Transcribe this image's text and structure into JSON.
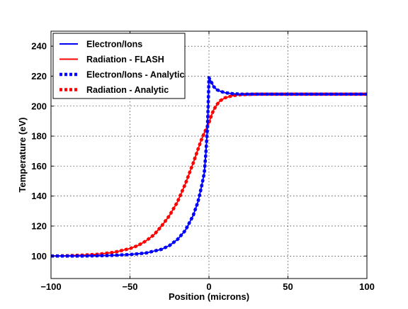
{
  "chart_data": {
    "type": "line",
    "title": "",
    "xlabel": "Position (microns)",
    "ylabel": "Temperature (eV)",
    "xlim": [
      -100,
      100
    ],
    "ylim": [
      85,
      250
    ],
    "xticks": [
      -100,
      -50,
      0,
      50,
      100
    ],
    "xtick_labels": [
      "−100",
      "−50",
      "0",
      "50",
      "100"
    ],
    "yticks": [
      100,
      120,
      140,
      160,
      180,
      200,
      220,
      240
    ],
    "ytick_labels": [
      "100",
      "120",
      "140",
      "160",
      "180",
      "200",
      "220",
      "240"
    ],
    "grid": true,
    "legend_position": "top-left",
    "series": [
      {
        "name": "Electron/Ions",
        "color": "#0000ff",
        "style": "solid",
        "x": [
          -100,
          -90,
          -80,
          -70,
          -60,
          -50,
          -40,
          -30,
          -25,
          -20,
          -15,
          -10,
          -7,
          -5,
          -3,
          -2,
          -1,
          -0.5,
          0,
          0.5,
          1,
          2,
          3,
          5,
          7,
          10,
          15,
          20,
          30,
          40,
          50,
          60,
          70,
          80,
          90,
          100
        ],
        "y": [
          100,
          100,
          100,
          100.2,
          100.5,
          101,
          102,
          104.5,
          107,
          111,
          117,
          127,
          136,
          145,
          155,
          168,
          185,
          200,
          219,
          218,
          217,
          215,
          213,
          211,
          210,
          209,
          208.3,
          208,
          208,
          208,
          208,
          208,
          208,
          208,
          208,
          208
        ]
      },
      {
        "name": "Radiation - FLASH",
        "color": "#ff0000",
        "style": "solid",
        "x": [
          -100,
          -90,
          -80,
          -70,
          -60,
          -50,
          -45,
          -40,
          -35,
          -30,
          -25,
          -20,
          -15,
          -10,
          -7,
          -5,
          -3,
          -1,
          0,
          1,
          2,
          3,
          5,
          7,
          10,
          15,
          20,
          30,
          40,
          50,
          60,
          70,
          80,
          90,
          100
        ],
        "y": [
          100,
          100.2,
          100.6,
          101.2,
          102.5,
          105,
          107,
          110,
          114,
          120,
          127,
          136,
          148,
          162,
          171,
          177,
          182,
          186.5,
          189,
          192,
          195,
          197.5,
          201,
          203.5,
          205.5,
          207,
          207.6,
          208,
          208,
          208,
          208,
          208,
          208,
          208,
          208
        ]
      },
      {
        "name": "Electron/Ions - Analytic",
        "color": "#0000ff",
        "style": "dashed",
        "x": [
          -100,
          -90,
          -80,
          -70,
          -60,
          -50,
          -40,
          -30,
          -25,
          -20,
          -15,
          -10,
          -7,
          -5,
          -3,
          -2,
          -1,
          -0.5,
          0,
          0.5,
          1,
          2,
          3,
          5,
          7,
          10,
          15,
          20,
          30,
          40,
          50,
          60,
          70,
          80,
          90,
          100
        ],
        "y": [
          100,
          100,
          100,
          100.2,
          100.5,
          101,
          102,
          104.5,
          107,
          111,
          117,
          127,
          136,
          145,
          155,
          168,
          185,
          200,
          219,
          218,
          217,
          215,
          213,
          211,
          210,
          209,
          208.3,
          208,
          208,
          208,
          208,
          208,
          208,
          208,
          208,
          208
        ]
      },
      {
        "name": "Radiation - Analytic",
        "color": "#ff0000",
        "style": "dashed",
        "x": [
          -100,
          -90,
          -80,
          -70,
          -60,
          -50,
          -45,
          -40,
          -35,
          -30,
          -25,
          -20,
          -15,
          -10,
          -7,
          -5,
          -3,
          -1,
          0,
          1,
          2,
          3,
          5,
          7,
          10,
          15,
          20,
          30,
          40,
          50,
          60,
          70,
          80,
          90,
          100
        ],
        "y": [
          100,
          100.2,
          100.6,
          101.2,
          102.5,
          105,
          107,
          110,
          114,
          120,
          127,
          136,
          148,
          162,
          171,
          177,
          182,
          186.5,
          189,
          192,
          195,
          197.5,
          201,
          203.5,
          205.5,
          207,
          207.6,
          208,
          208,
          208,
          208,
          208,
          208,
          208,
          208
        ]
      }
    ]
  }
}
